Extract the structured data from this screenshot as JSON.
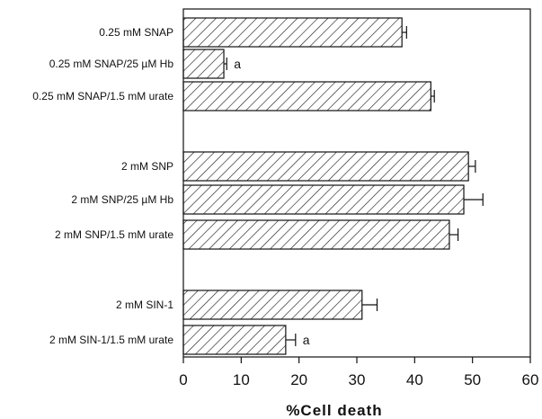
{
  "chart_data": {
    "type": "bar",
    "orientation": "horizontal",
    "categories": [
      "0.25 mM SNAP",
      "0.25 mM SNAP/25 µM Hb",
      "0.25 mM SNAP/1.5 mM urate",
      "2 mM SNP",
      "2 mM SNP/25 µM Hb",
      "2 mM SNP/1.5 mM urate",
      "2 mM SIN-1",
      "2 mM SIN-1/1.5 mM urate"
    ],
    "values": [
      37.8,
      7.0,
      42.8,
      49.3,
      48.5,
      46.0,
      30.9,
      17.7
    ],
    "errors": [
      0.8,
      0.5,
      0.6,
      1.2,
      3.3,
      1.5,
      2.6,
      1.7
    ],
    "annotations": [
      "",
      "a",
      "",
      "",
      "",
      "",
      "",
      "a"
    ],
    "groups": [
      [
        0,
        1,
        2
      ],
      [
        3,
        4,
        5
      ],
      [
        6,
        7
      ]
    ],
    "xlabel": "%Cell death",
    "xlim": [
      0,
      60
    ],
    "xticks": [
      "0",
      "10",
      "20",
      "30",
      "40",
      "50",
      "60"
    ],
    "grid": false,
    "fill": "diagonal-hatch",
    "colors": {
      "bar_stroke": "#111111",
      "hatch": "#111111",
      "axis": "#111111",
      "text": "#111111",
      "background": "#ffffff"
    }
  }
}
